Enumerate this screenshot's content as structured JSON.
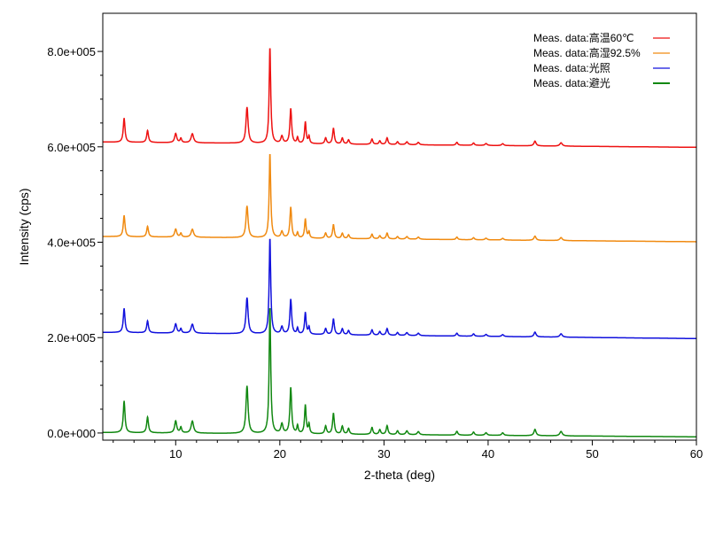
{
  "chart_data": {
    "type": "line",
    "title": "",
    "xlabel": "2-theta (deg)",
    "ylabel": "Intensity (cps)",
    "xlim": [
      3,
      60
    ],
    "ylim": [
      -15000,
      880000
    ],
    "grid": false,
    "legend_position": "top-right",
    "x_ticks": [
      10,
      20,
      30,
      40,
      50,
      60
    ],
    "x_tick_labels": [
      "10",
      "20",
      "30",
      "40",
      "50",
      "60"
    ],
    "y_ticks": [
      0,
      200000,
      400000,
      600000,
      800000
    ],
    "y_tick_labels": [
      "0.0e+000",
      "2.0e+005",
      "4.0e+005",
      "6.0e+005",
      "8.0e+005"
    ],
    "peaks": [
      [
        5.05,
        1.0,
        0.1
      ],
      [
        7.3,
        0.5,
        0.1
      ],
      [
        10.0,
        0.38,
        0.12
      ],
      [
        10.5,
        0.18,
        0.09
      ],
      [
        11.6,
        0.38,
        0.14
      ],
      [
        16.85,
        1.5,
        0.12
      ],
      [
        19.05,
        4.0,
        0.09
      ],
      [
        20.2,
        0.3,
        0.12
      ],
      [
        21.05,
        1.45,
        0.1
      ],
      [
        21.7,
        0.25,
        0.08
      ],
      [
        22.45,
        0.9,
        0.09
      ],
      [
        22.8,
        0.3,
        0.08
      ],
      [
        24.4,
        0.25,
        0.1
      ],
      [
        25.15,
        0.65,
        0.1
      ],
      [
        26.0,
        0.25,
        0.1
      ],
      [
        26.6,
        0.18,
        0.1
      ],
      [
        28.85,
        0.22,
        0.1
      ],
      [
        29.6,
        0.15,
        0.1
      ],
      [
        30.3,
        0.28,
        0.1
      ],
      [
        31.3,
        0.12,
        0.1
      ],
      [
        32.2,
        0.12,
        0.12
      ],
      [
        33.3,
        0.1,
        0.12
      ],
      [
        37.0,
        0.12,
        0.1
      ],
      [
        38.6,
        0.1,
        0.1
      ],
      [
        39.8,
        0.08,
        0.12
      ],
      [
        41.4,
        0.08,
        0.12
      ],
      [
        44.5,
        0.2,
        0.12
      ],
      [
        47.0,
        0.14,
        0.14
      ]
    ],
    "series": [
      {
        "name": "Meas. data:高温60℃",
        "color": "#ee1111",
        "offset": 600000,
        "peak_unit": 50000,
        "ends": [
          10000,
          -1000
        ]
      },
      {
        "name": "Meas. data:高湿92.5%",
        "color": "#f08a10",
        "offset": 402000,
        "peak_unit": 44000,
        "ends": [
          10000,
          -1000
        ]
      },
      {
        "name": "Meas. data:光照",
        "color": "#1111dd",
        "offset": 199000,
        "peak_unit": 50000,
        "ends": [
          12000,
          -1000
        ]
      },
      {
        "name": "Meas. data:避光",
        "color": "#118811",
        "offset": -4000,
        "peak_unit": 66000,
        "ends": [
          5000,
          -4000
        ]
      }
    ]
  }
}
